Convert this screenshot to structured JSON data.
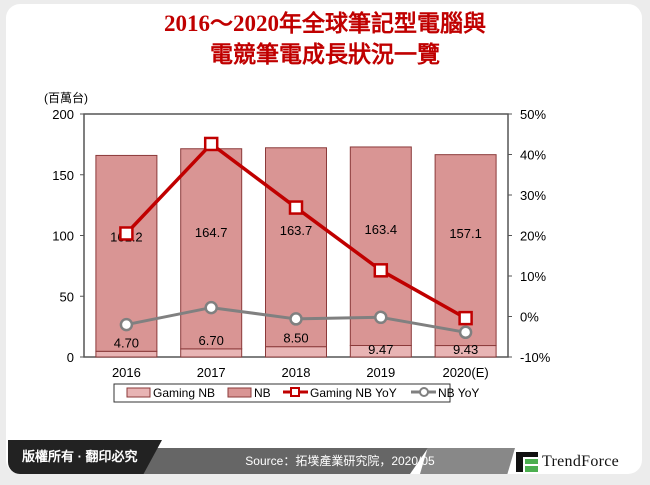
{
  "title_lines": [
    "2016～2020年全球筆記型電腦與",
    "電競筆電成長狀況一覽"
  ],
  "footer": {
    "copyright": "版權所有 · 翻印必究",
    "source": "Source：拓墣產業研究院，2020/05",
    "logo": "TrendForce"
  },
  "colors": {
    "title": "#c00000",
    "gaming_nb": "#e8b4b4",
    "nb": "#d99594",
    "gaming_yoy": "#c00000",
    "nb_yoy": "#808080"
  },
  "chart_data": {
    "type": "bar+line",
    "categories": [
      "2016",
      "2017",
      "2018",
      "2019",
      "2020(E)"
    ],
    "ylabel": "(百萬台)",
    "ylim": [
      0,
      200
    ],
    "yticks": [
      0,
      50,
      100,
      150,
      200
    ],
    "y2lim": [
      -10,
      50
    ],
    "y2ticks": [
      "-10%",
      "0%",
      "10%",
      "20%",
      "30%",
      "40%",
      "50%"
    ],
    "stacked": true,
    "series": [
      {
        "name": "Gaming NB",
        "type": "bar",
        "axis": "left",
        "values": [
          4.7,
          6.7,
          8.5,
          9.47,
          9.43
        ],
        "labels": [
          "4.70",
          "6.70",
          "8.50",
          "9.47",
          "9.43"
        ]
      },
      {
        "name": "NB",
        "type": "bar",
        "axis": "left",
        "values": [
          161.2,
          164.7,
          163.7,
          163.4,
          157.1
        ],
        "labels": [
          "161.2",
          "164.7",
          "163.7",
          "163.4",
          "157.1"
        ]
      },
      {
        "name": "Gaming NB YoY",
        "type": "line",
        "axis": "right",
        "marker": "square",
        "values": [
          20.5,
          42.6,
          26.9,
          11.4,
          -0.4
        ]
      },
      {
        "name": "NB YoY",
        "type": "line",
        "axis": "right",
        "marker": "circle",
        "values": [
          -2.0,
          2.2,
          -0.6,
          -0.2,
          -3.9
        ]
      }
    ],
    "legend": "bottom"
  }
}
